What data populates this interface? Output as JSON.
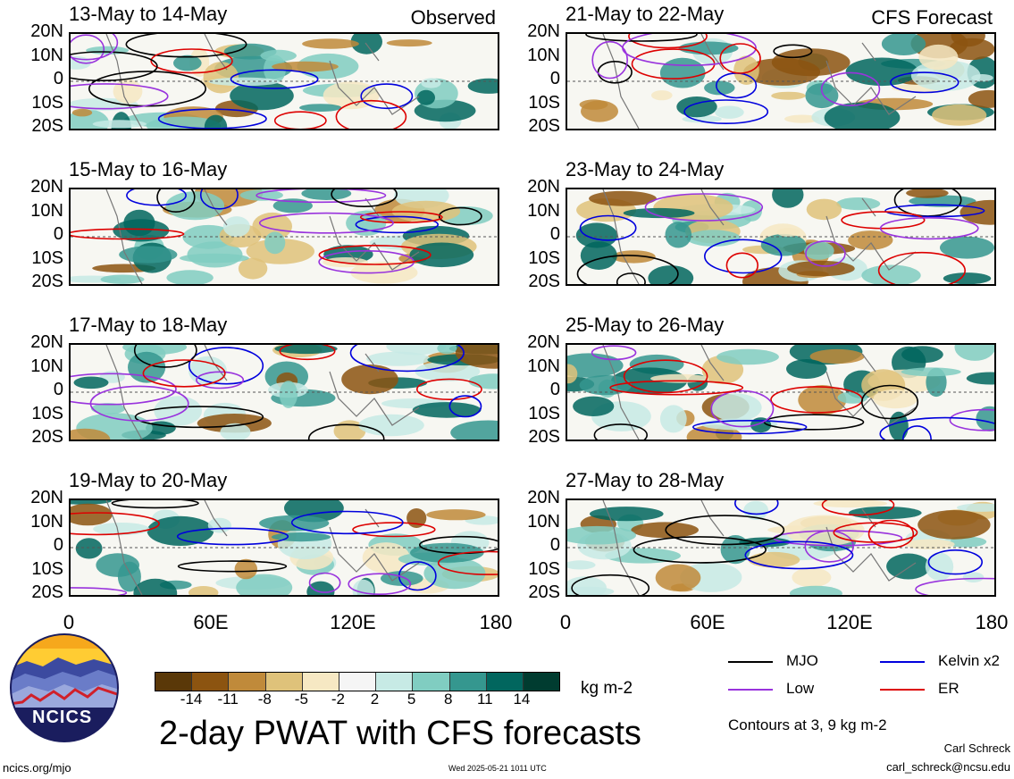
{
  "panels": [
    {
      "title": "13-May to 14-May",
      "tag": "Observed"
    },
    {
      "title": "15-May to 16-May",
      "tag": ""
    },
    {
      "title": "17-May to 18-May",
      "tag": ""
    },
    {
      "title": "19-May to 20-May",
      "tag": ""
    },
    {
      "title": "21-May to 22-May",
      "tag": "CFS Forecast"
    },
    {
      "title": "23-May to 24-May",
      "tag": ""
    },
    {
      "title": "25-May to 26-May",
      "tag": ""
    },
    {
      "title": "27-May to 28-May",
      "tag": ""
    }
  ],
  "lat_labels": [
    "20N",
    "10N",
    "0",
    "10S",
    "20S"
  ],
  "lon_labels": [
    "0",
    "60E",
    "120E",
    "180"
  ],
  "colorbar": {
    "colors": [
      "#5a3808",
      "#8c5410",
      "#c08a3a",
      "#dfc27a",
      "#f6e8c3",
      "#f5f5f5",
      "#c7eae5",
      "#80cdc1",
      "#35978f",
      "#01665e",
      "#003c30"
    ],
    "ticks": [
      "-14",
      "-11",
      "-8",
      "-5",
      "-2",
      "2",
      "5",
      "8",
      "11",
      "14"
    ],
    "units": "kg m-2"
  },
  "legend": [
    {
      "label": "MJO",
      "color": "#000000"
    },
    {
      "label": "Kelvin x2",
      "color": "#0000dd"
    },
    {
      "label": "Low",
      "color": "#9933dd"
    },
    {
      "label": "ER",
      "color": "#dd0000"
    }
  ],
  "contours_note": "Contours at 3, 9 kg m-2",
  "title": "2-day PWAT with CFS forecasts",
  "logo_text": "NCICS",
  "footer": {
    "url": "ncics.org/mjo",
    "timestamp": "Wed 2025-05-21 1011 UTC",
    "author": "Carl Schreck",
    "email": "carl_schreck@ncsu.edu"
  }
}
